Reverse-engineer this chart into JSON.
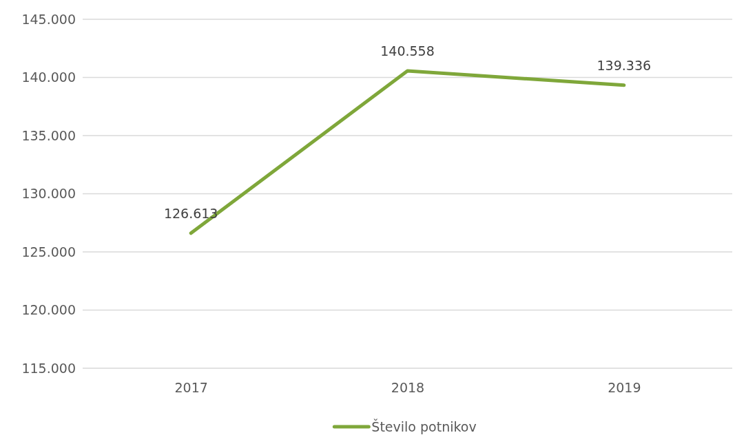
{
  "chart_data": {
    "type": "line",
    "categories": [
      "2017",
      "2018",
      "2019"
    ],
    "series": [
      {
        "name": "Število potnikov",
        "color": "#7fa73a",
        "values": [
          126613,
          140558,
          139336
        ],
        "value_labels": [
          "126.613",
          "140.558",
          "139.336"
        ]
      }
    ],
    "ylim": [
      115000,
      145000
    ],
    "yticks": [
      {
        "value": 115000,
        "label": "115.000"
      },
      {
        "value": 120000,
        "label": "120.000"
      },
      {
        "value": 125000,
        "label": "125.000"
      },
      {
        "value": 130000,
        "label": "130.000"
      },
      {
        "value": 135000,
        "label": "135.000"
      },
      {
        "value": 140000,
        "label": "140.000"
      },
      {
        "value": 145000,
        "label": "145.000"
      }
    ],
    "grid": "y",
    "legend": "bottom",
    "marker": "none",
    "line_style": "solid"
  }
}
